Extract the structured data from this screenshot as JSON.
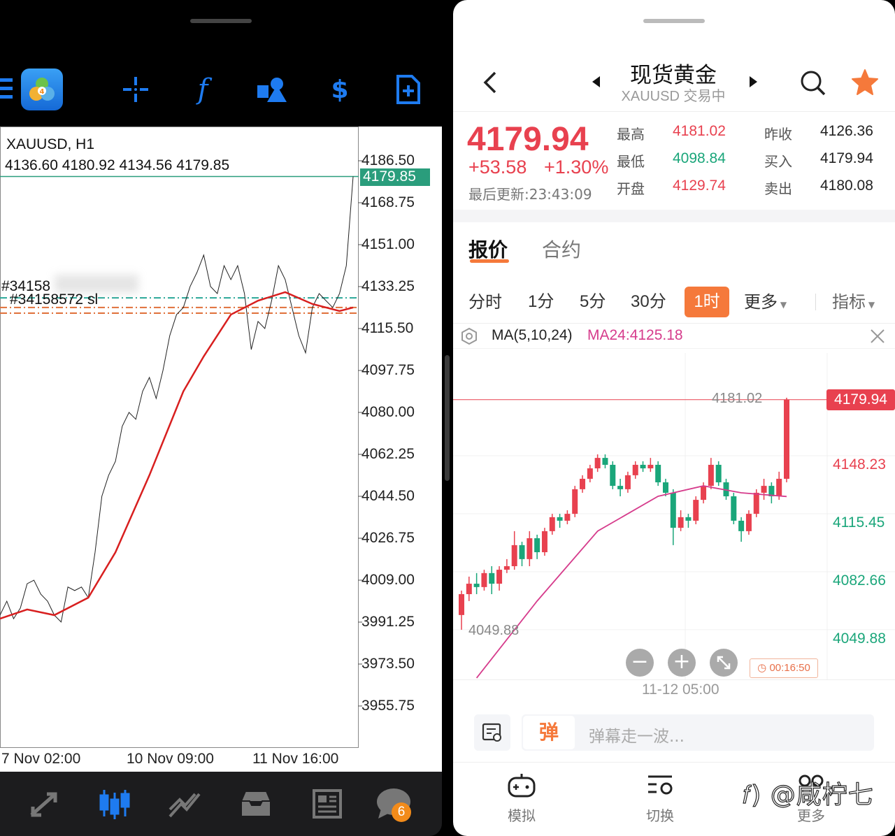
{
  "left_app": {
    "toolbar": {
      "icons": [
        "menu-icon",
        "metatrader-logo",
        "crosshair-icon",
        "function-icon",
        "shapes-icon",
        "trade-icon",
        "new-order-icon"
      ]
    },
    "chart": {
      "symbol_timeframe": "XAUUSD, H1",
      "ohlc": "4136.60 4180.92 4134.56 4179.85",
      "current_price": "4179.85",
      "order_label_1": "#34158",
      "order_label_2": "#34158572 sl",
      "y_ticks": [
        "4186.50",
        "4168.75",
        "4151.00",
        "4133.25",
        "4115.50",
        "4097.75",
        "4080.00",
        "4062.25",
        "4044.50",
        "4026.75",
        "4009.00",
        "3991.25",
        "3973.50",
        "3955.75"
      ],
      "x_ticks": [
        "7 Nov 02:00",
        "10 Nov 09:00",
        "11 Nov 16:00"
      ]
    },
    "bottom_nav": {
      "icons": [
        "quotes-icon",
        "chart-icon",
        "trade-icon",
        "history-icon",
        "news-icon",
        "messages-icon"
      ],
      "messages_badge": "6"
    }
  },
  "right_app": {
    "header": {
      "title": "现货黄金",
      "subtitle": "XAUUSD 交易中"
    },
    "quote": {
      "price": "4179.94",
      "change": "+53.58",
      "change_pct": "+1.30%",
      "updated": "最后更新:23:43:09",
      "stats": [
        {
          "label": "最高",
          "value": "4181.02",
          "color": "#e8414f"
        },
        {
          "label": "昨收",
          "value": "4126.36",
          "color": "#222222"
        },
        {
          "label": "最低",
          "value": "4098.84",
          "color": "#1aa67a"
        },
        {
          "label": "买入",
          "value": "4179.94",
          "color": "#222222"
        },
        {
          "label": "开盘",
          "value": "4129.74",
          "color": "#e8414f"
        },
        {
          "label": "卖出",
          "value": "4180.08",
          "color": "#222222"
        }
      ]
    },
    "tabs": [
      {
        "label": "报价",
        "active": true
      },
      {
        "label": "合约",
        "active": false
      }
    ],
    "timeframes": [
      "分时",
      "1分",
      "5分",
      "30分",
      "1时",
      "更多"
    ],
    "active_timeframe": "1时",
    "indicator_label": "指标",
    "ma": {
      "label": "MA(5,10,24)",
      "value": "MA24:4125.18"
    },
    "chart": {
      "price_tag": "4179.94",
      "high_label": "4181.02",
      "low_label": "4049.88",
      "y_ticks": [
        "4148.23",
        "4115.45",
        "4082.66",
        "4049.88"
      ],
      "x_label": "11-12 05:00",
      "countdown": "00:16:50"
    },
    "comment": {
      "badge": "弹",
      "placeholder": "弹幕走一波..."
    },
    "bottom_nav": [
      {
        "label": "模拟",
        "icon": "gamepad-icon"
      },
      {
        "label": "切换",
        "icon": "switch-icon"
      },
      {
        "label": "更多",
        "icon": "more-icon"
      }
    ],
    "watermark": "@咸柠七"
  },
  "colors": {
    "up": "#e8414f",
    "down": "#1aa67a",
    "accent": "#f5793b",
    "mt_blue": "#1e7bf0",
    "ma24": "#d63c8c",
    "mt_ma": "#d81f1f"
  },
  "chart_data": [
    {
      "type": "line",
      "title": "XAUUSD, H1",
      "ylim": [
        3938.0,
        4201.0
      ],
      "x_ticks": [
        "7 Nov 02:00",
        "10 Nov 09:00",
        "11 Nov 16:00"
      ],
      "series": [
        {
          "values": [
            3994.2,
            4000.1,
            3992.7,
            3997.2,
            4007.5,
            4009.0,
            4003.1,
            4000.1,
            3994.2,
            3991.3,
            4006.1,
            4004.6,
            4006.1,
            4001.6,
            4020.8,
            4044.5,
            4053.4,
            4059.3,
            4074.1,
            4080.0,
            4077.1,
            4088.9,
            4094.8,
            4085.9,
            4097.8,
            4112.5,
            4121.4,
            4124.4,
            4133.3,
            4139.2,
            4146.6,
            4133.3,
            4130.3,
            4142.1,
            4136.2,
            4142.1,
            4130.3,
            4106.6,
            4118.5,
            4115.5,
            4127.3,
            4142.1,
            4136.2,
            4124.4,
            4112.5,
            4105.2,
            4124.4,
            4130.3,
            4127.3,
            4124.4,
            4130.3,
            4142.1,
            4179.85
          ]
        },
        {
          "type": "moving-average",
          "points": [
            [
              0,
              3992.7
            ],
            [
              4,
              3996.6
            ],
            [
              8,
              3994.2
            ],
            [
              13,
              4001.6
            ],
            [
              17,
              4020.8
            ],
            [
              22,
              4053.4
            ],
            [
              27,
              4088.9
            ],
            [
              30,
              4103.7
            ],
            [
              34,
              4121.4
            ],
            [
              38,
              4127.3
            ],
            [
              42,
              4130.9
            ],
            [
              46,
              4125.9
            ],
            [
              50,
              4122.9
            ],
            [
              52,
              4124.4
            ]
          ]
        }
      ],
      "hlines": [
        {
          "value": 4179.85,
          "style": "solid",
          "color": "#2a9d7c"
        },
        {
          "value": 4128.5,
          "style": "dashdot",
          "color": "#2aa898"
        },
        {
          "value": 4124.4,
          "style": "dashdot",
          "color": "#e0703a"
        },
        {
          "value": 4122.0,
          "style": "dashdot",
          "color": "#e0703a"
        }
      ]
    },
    {
      "type": "candlestick",
      "ylim": [
        4021.8,
        4206.3
      ],
      "y_ticks": [
        4148.23,
        4115.45,
        4082.66,
        4049.88
      ],
      "ohlc": [
        [
          4058.2,
          4072.0,
          4049.88,
          4070.0
        ],
        [
          4070.0,
          4079.9,
          4066.1,
          4075.9
        ],
        [
          4075.9,
          4081.9,
          4070.0,
          4074.0
        ],
        [
          4074.0,
          4083.8,
          4072.0,
          4081.9
        ],
        [
          4081.9,
          4085.8,
          4070.0,
          4075.9
        ],
        [
          4075.9,
          4085.8,
          4072.0,
          4083.8
        ],
        [
          4083.8,
          4089.8,
          4081.9,
          4085.8
        ],
        [
          4085.8,
          4105.6,
          4083.8,
          4097.7
        ],
        [
          4097.7,
          4099.6,
          4085.8,
          4089.8
        ],
        [
          4089.8,
          4105.6,
          4085.8,
          4101.6
        ],
        [
          4101.6,
          4103.6,
          4089.8,
          4093.7
        ],
        [
          4093.7,
          4107.5,
          4091.7,
          4105.6
        ],
        [
          4105.6,
          4115.4,
          4103.6,
          4113.5
        ],
        [
          4113.5,
          4115.4,
          4107.5,
          4111.5
        ],
        [
          4111.5,
          4117.4,
          4109.5,
          4115.4
        ],
        [
          4115.4,
          4131.2,
          4113.5,
          4129.3
        ],
        [
          4129.3,
          4137.2,
          4127.3,
          4135.2
        ],
        [
          4135.2,
          4143.1,
          4133.2,
          4141.1
        ],
        [
          4141.1,
          4149.0,
          4139.1,
          4147.0
        ],
        [
          4147.0,
          4149.0,
          4141.1,
          4143.1
        ],
        [
          4143.1,
          4145.1,
          4129.3,
          4131.2
        ],
        [
          4131.2,
          4135.2,
          4125.3,
          4129.3
        ],
        [
          4129.3,
          4139.2,
          4127.3,
          4137.2
        ],
        [
          4137.2,
          4145.1,
          4135.2,
          4143.1
        ],
        [
          4143.1,
          4145.1,
          4139.1,
          4141.1
        ],
        [
          4141.1,
          4147.0,
          4139.1,
          4143.1
        ],
        [
          4143.1,
          4145.1,
          4131.2,
          4133.2
        ],
        [
          4133.2,
          4135.2,
          4125.3,
          4127.3
        ],
        [
          4127.3,
          4129.3,
          4097.7,
          4107.5
        ],
        [
          4107.5,
          4117.4,
          4105.6,
          4113.5
        ],
        [
          4113.5,
          4115.4,
          4107.5,
          4111.5
        ],
        [
          4111.5,
          4125.3,
          4109.5,
          4123.3
        ],
        [
          4123.3,
          4133.2,
          4121.3,
          4131.2
        ],
        [
          4131.2,
          4147.0,
          4129.3,
          4143.1
        ],
        [
          4143.1,
          4145.1,
          4131.2,
          4133.2
        ],
        [
          4133.2,
          4135.2,
          4123.3,
          4125.3
        ],
        [
          4125.3,
          4127.3,
          4109.5,
          4111.5
        ],
        [
          4111.5,
          4113.5,
          4099.6,
          4105.6
        ],
        [
          4105.6,
          4117.4,
          4103.6,
          4115.4
        ],
        [
          4115.4,
          4129.3,
          4113.5,
          4127.3
        ],
        [
          4127.3,
          4135.2,
          4123.3,
          4131.2
        ],
        [
          4131.2,
          4133.2,
          4121.3,
          4125.3
        ],
        [
          4125.3,
          4139.2,
          4123.3,
          4135.2
        ],
        [
          4135.2,
          4181.02,
          4133.2,
          4179.94
        ]
      ],
      "ma24": [
        [
          2,
          4022.6
        ],
        [
          10,
          4066.1
        ],
        [
          18,
          4105.6
        ],
        [
          26,
          4125.3
        ],
        [
          32,
          4131.2
        ],
        [
          37,
          4127.3
        ],
        [
          43,
          4125.18
        ]
      ],
      "current_price": 4179.94
    }
  ]
}
